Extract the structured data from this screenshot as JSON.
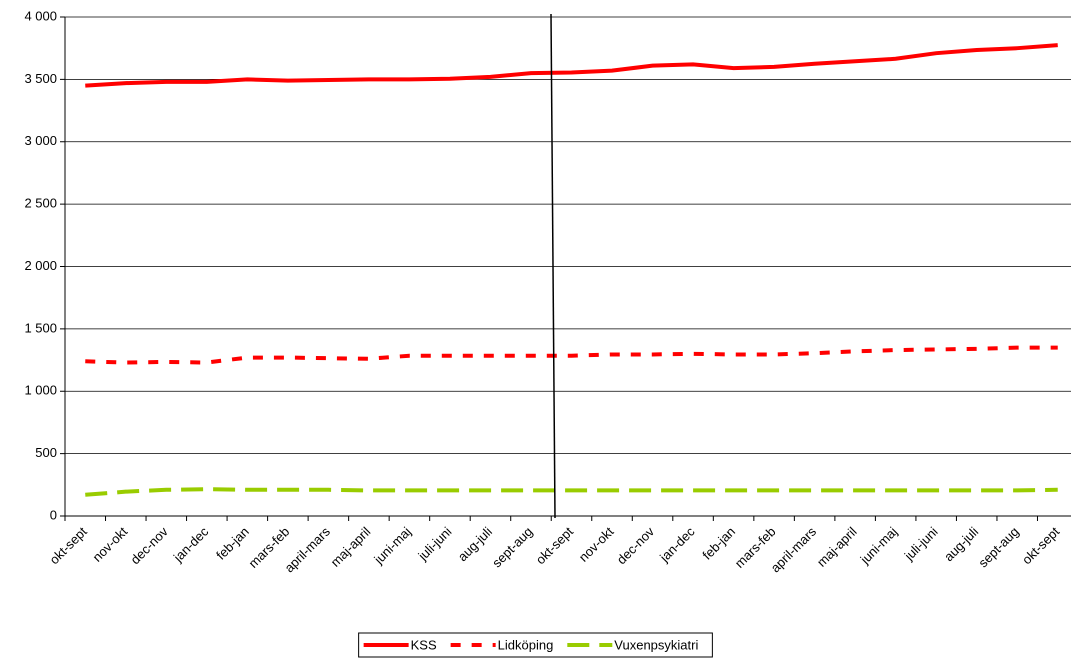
{
  "chart_data": {
    "type": "line",
    "categories": [
      "okt-sept",
      "nov-okt",
      "dec-nov",
      "jan-dec",
      "feb-jan",
      "mars-feb",
      "april-mars",
      "maj-april",
      "juni-maj",
      "juli-juni",
      "aug-juli",
      "sept-aug",
      "okt-sept",
      "nov-okt",
      "dec-nov",
      "jan-dec",
      "feb-jan",
      "mars-feb",
      "april-mars",
      "maj-april",
      "juni-maj",
      "juli-juni",
      "aug-juli",
      "sept-aug",
      "okt-sept"
    ],
    "series": [
      {
        "name": "KSS",
        "color": "#ff0000",
        "dash": "solid",
        "values": [
          3450,
          3470,
          3480,
          3480,
          3500,
          3490,
          3495,
          3500,
          3500,
          3505,
          3520,
          3550,
          3555,
          3570,
          3610,
          3620,
          3590,
          3600,
          3625,
          3645,
          3665,
          3710,
          3735,
          3750,
          3775
        ]
      },
      {
        "name": "Lidköping",
        "color": "#ff0000",
        "dash": "dotted",
        "values": [
          1240,
          1230,
          1235,
          1230,
          1270,
          1270,
          1265,
          1260,
          1285,
          1285,
          1285,
          1285,
          1285,
          1295,
          1295,
          1300,
          1295,
          1295,
          1305,
          1320,
          1330,
          1335,
          1340,
          1350,
          1350
        ]
      },
      {
        "name": "Vuxenpsykiatri",
        "color": "#99cc00",
        "dash": "dashed",
        "values": [
          170,
          195,
          210,
          215,
          210,
          210,
          210,
          205,
          205,
          205,
          205,
          205,
          205,
          205,
          205,
          205,
          205,
          205,
          205,
          205,
          205,
          205,
          205,
          205,
          210
        ]
      }
    ],
    "ylim": [
      0,
      4000
    ],
    "yticks": [
      0,
      500,
      {
        "value": 1000,
        "label": "1 000"
      },
      {
        "value": 1500,
        "label": "1 500"
      },
      {
        "value": 2000,
        "label": "2 000"
      },
      {
        "value": 2500,
        "label": "2 500"
      },
      {
        "value": 3000,
        "label": "3 000"
      },
      {
        "value": 3500,
        "label": "3 500"
      },
      {
        "value": 4000,
        "label": "4 000"
      }
    ],
    "grid": true,
    "legend": "bottom"
  }
}
